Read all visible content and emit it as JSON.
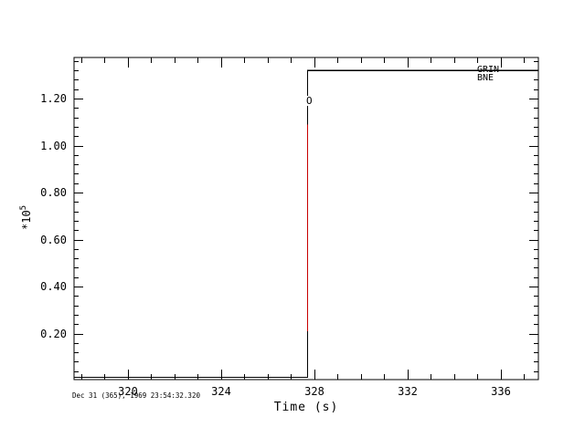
{
  "window": {
    "background": "#ffffff",
    "foreground": "#000000"
  },
  "chart_data": {
    "type": "line",
    "title": "",
    "xlabel": "Time (s)",
    "ylabel": "",
    "y_scale_label": {
      "mantissa": "*10",
      "exponent": "5"
    },
    "timestamp": "Dec 31 (365), 1969 23:54:32.320",
    "grid": false,
    "frame": true,
    "tick_style": "inward-all-sides",
    "x_range": [
      317.69,
      337.61
    ],
    "y_range": [
      0.004,
      1.375
    ],
    "x_ticks": {
      "major": [
        320,
        324,
        328,
        332,
        336
      ],
      "labels": [
        "320",
        "324",
        "328",
        "332",
        "336"
      ],
      "minor_step": 1
    },
    "y_ticks": {
      "major": [
        0.2,
        0.4,
        0.6,
        0.8,
        1.0,
        1.2
      ],
      "labels": [
        "0.20",
        "0.40",
        "0.60",
        "0.80",
        "1.00",
        "1.20"
      ],
      "minor_step": 0.04
    },
    "legend_position": "right-end-of-lines",
    "series": [
      {
        "name": "GRIN",
        "color": "#000000",
        "points": [
          [
            317.69,
            0.014
          ],
          [
            327.71,
            0.014
          ],
          [
            327.71,
            1.32
          ],
          [
            337.61,
            1.32
          ]
        ]
      },
      {
        "name": "BNE",
        "color": "#c80000",
        "points": [
          [
            317.69,
            0.014
          ],
          [
            327.71,
            0.014
          ],
          [
            327.71,
            1.32
          ],
          [
            337.61,
            1.32
          ]
        ],
        "visible_vertical_segment": {
          "t": 327.71,
          "v_from": 0.21,
          "v_to": 1.09
        }
      }
    ],
    "markers": [
      {
        "label": "O",
        "t": 327.71,
        "v": 1.18
      }
    ]
  }
}
